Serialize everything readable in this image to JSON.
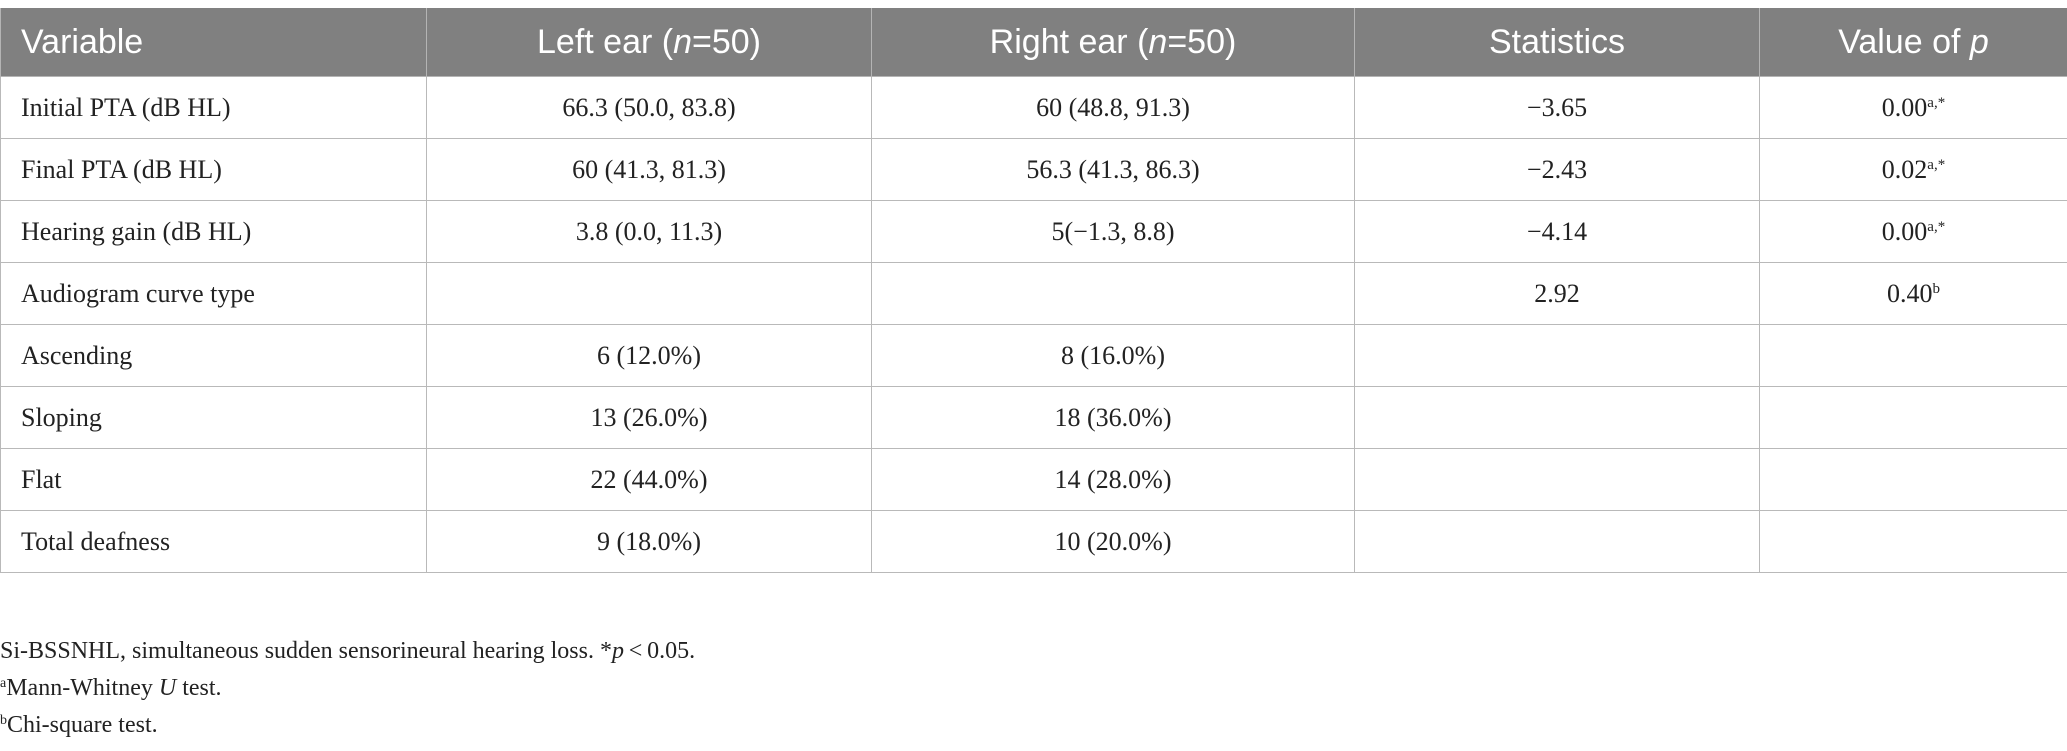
{
  "table": {
    "headers": [
      {
        "text": "Variable"
      },
      {
        "pre": "Left ear (",
        "italic": "n",
        "post": "=50)"
      },
      {
        "pre": "Right ear (",
        "italic": "n",
        "post": "=50)"
      },
      {
        "text": "Statistics"
      },
      {
        "pre": "Value of ",
        "italic": "p",
        "post": ""
      }
    ],
    "rows": [
      {
        "variable": "Initial PTA (dB HL)",
        "left": "66.3 (50.0, 83.8)",
        "right": "60 (48.8, 91.3)",
        "statistics": "−3.65",
        "p_value": "0.00",
        "p_sup": "a,*"
      },
      {
        "variable": "Final PTA (dB HL)",
        "left": "60 (41.3, 81.3)",
        "right": "56.3 (41.3, 86.3)",
        "statistics": "−2.43",
        "p_value": "0.02",
        "p_sup": "a,*"
      },
      {
        "variable": "Hearing gain (dB HL)",
        "left": "3.8 (0.0, 11.3)",
        "right": "5(−1.3, 8.8)",
        "statistics": "−4.14",
        "p_value": "0.00",
        "p_sup": "a,*"
      },
      {
        "variable": "Audiogram curve type",
        "left": "",
        "right": "",
        "statistics": "2.92",
        "p_value": "0.40",
        "p_sup": "b"
      },
      {
        "variable": "Ascending",
        "left": "6 (12.0%)",
        "right": "8 (16.0%)",
        "statistics": "",
        "p_value": "",
        "p_sup": ""
      },
      {
        "variable": "Sloping",
        "left": "13 (26.0%)",
        "right": "18 (36.0%)",
        "statistics": "",
        "p_value": "",
        "p_sup": ""
      },
      {
        "variable": "Flat",
        "left": "22 (44.0%)",
        "right": "14 (28.0%)",
        "statistics": "",
        "p_value": "",
        "p_sup": ""
      },
      {
        "variable": "Total deafness",
        "left": "9 (18.0%)",
        "right": "10 (20.0%)",
        "statistics": "",
        "p_value": "",
        "p_sup": ""
      }
    ]
  },
  "footnotes": {
    "abbrev_text": "Si-BSSNHL, simultaneous sudden sensorineural hearing loss. *",
    "abbrev_italic": "p",
    "abbrev_post": " < 0.05.",
    "note_a_marker": "a",
    "note_a_pre": "Mann-Whitney ",
    "note_a_italic": "U",
    "note_a_post": " test.",
    "note_b_marker": "b",
    "note_b_text": "Chi-square test."
  },
  "colors": {
    "header_bg": "#808080",
    "header_text": "#ffffff",
    "grid_line": "#b9b9b9",
    "body_text": "#222222"
  }
}
